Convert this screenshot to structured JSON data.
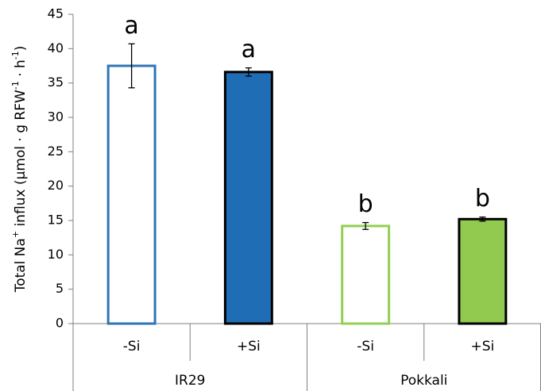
{
  "chart_data": {
    "type": "bar",
    "y_label": [
      "Total Na",
      "+",
      " influx (µmol · g RFW",
      "-1",
      " · h",
      "-1",
      ")"
    ],
    "categories": [
      "-Si",
      "+Si",
      "-Si",
      "+Si"
    ],
    "groups": [
      "IR29",
      "Pokkali"
    ],
    "values": [
      37.5,
      36.6,
      14.2,
      15.2
    ],
    "errors": [
      3.2,
      0.6,
      0.5,
      0.3
    ],
    "annotations": [
      "a",
      "a",
      "b",
      "b"
    ],
    "fill_colors": [
      "#ffffff",
      "#1f6db5",
      "#ffffff",
      "#92c94f"
    ],
    "edge_colors": [
      "#2e75b6",
      "#000000",
      "#92d050",
      "#000000"
    ],
    "ylim": [
      0,
      45
    ],
    "yticks": [
      0,
      5,
      10,
      15,
      20,
      25,
      30,
      35,
      40,
      45
    ],
    "grid": false
  }
}
